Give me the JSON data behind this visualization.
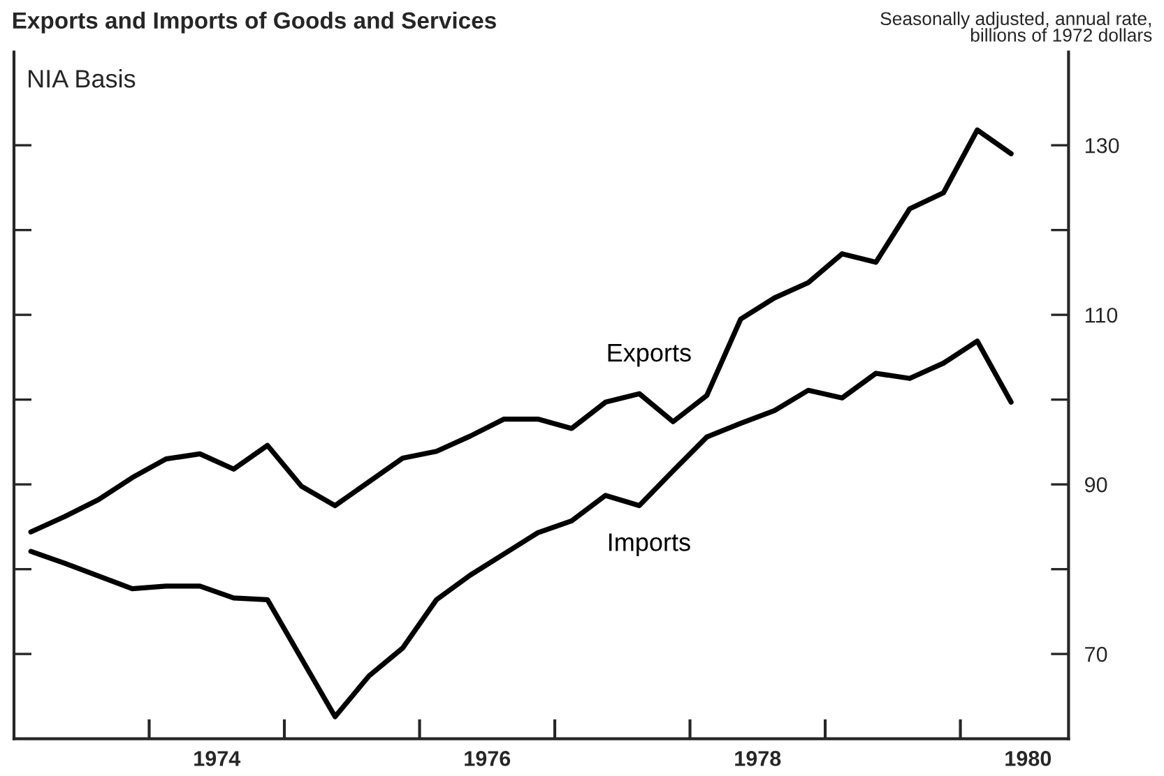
{
  "chart_data": {
    "type": "line",
    "title": "Exports and Imports of Goods and Services",
    "ylabel": "Seasonally adjusted, annual rate,\nbillions of 1972 dollars",
    "annotations": [
      "NIA Basis"
    ],
    "x": [
      1973.125,
      1973.375,
      1973.625,
      1973.875,
      1974.125,
      1974.375,
      1974.625,
      1974.875,
      1975.125,
      1975.375,
      1975.625,
      1975.875,
      1976.125,
      1976.375,
      1976.625,
      1976.875,
      1977.125,
      1977.375,
      1977.625,
      1977.875,
      1978.125,
      1978.375,
      1978.625,
      1978.875,
      1979.125,
      1979.375,
      1979.625,
      1979.875,
      1980.125,
      1980.375
    ],
    "series": [
      {
        "name": "Exports",
        "color": "#000000",
        "values": [
          84.4,
          86.2,
          88.2,
          90.8,
          93.0,
          93.6,
          91.8,
          94.6,
          89.8,
          87.5,
          90.3,
          93.1,
          93.9,
          95.7,
          97.7,
          97.7,
          96.6,
          99.7,
          100.7,
          97.4,
          100.5,
          109.5,
          112.0,
          113.8,
          117.2,
          116.2,
          122.5,
          124.4,
          131.8,
          129.0
        ]
      },
      {
        "name": "Imports",
        "color": "#000000",
        "values": [
          82.1,
          80.7,
          79.2,
          77.7,
          78.0,
          78.0,
          76.6,
          76.4,
          69.5,
          62.6,
          67.4,
          70.7,
          76.4,
          79.3,
          81.8,
          84.3,
          85.7,
          88.7,
          87.5,
          91.6,
          95.6,
          97.2,
          98.7,
          101.1,
          100.2,
          103.1,
          102.5,
          104.3,
          106.9,
          99.7
        ]
      }
    ],
    "xlim": [
      1973,
      1980.8
    ],
    "xticks": [
      {
        "value": 1974,
        "label": null
      },
      {
        "value": 1974.5,
        "label": "1974"
      },
      {
        "value": 1975,
        "label": null
      },
      {
        "value": 1976,
        "label": null
      },
      {
        "value": 1976.5,
        "label": "1976"
      },
      {
        "value": 1977,
        "label": null
      },
      {
        "value": 1978,
        "label": null
      },
      {
        "value": 1978.5,
        "label": "1978"
      },
      {
        "value": 1979,
        "label": null
      },
      {
        "value": 1980,
        "label": null
      },
      {
        "value": 1980.5,
        "label": "1980"
      }
    ],
    "ylim": [
      60,
      141
    ],
    "yticks": [
      70,
      {
        "value": 80,
        "label": null
      },
      90,
      {
        "value": 100,
        "label": null
      },
      110,
      {
        "value": 120,
        "label": null
      },
      130
    ],
    "grid": false,
    "legend": false,
    "line_style": "solid",
    "marker": "none"
  }
}
